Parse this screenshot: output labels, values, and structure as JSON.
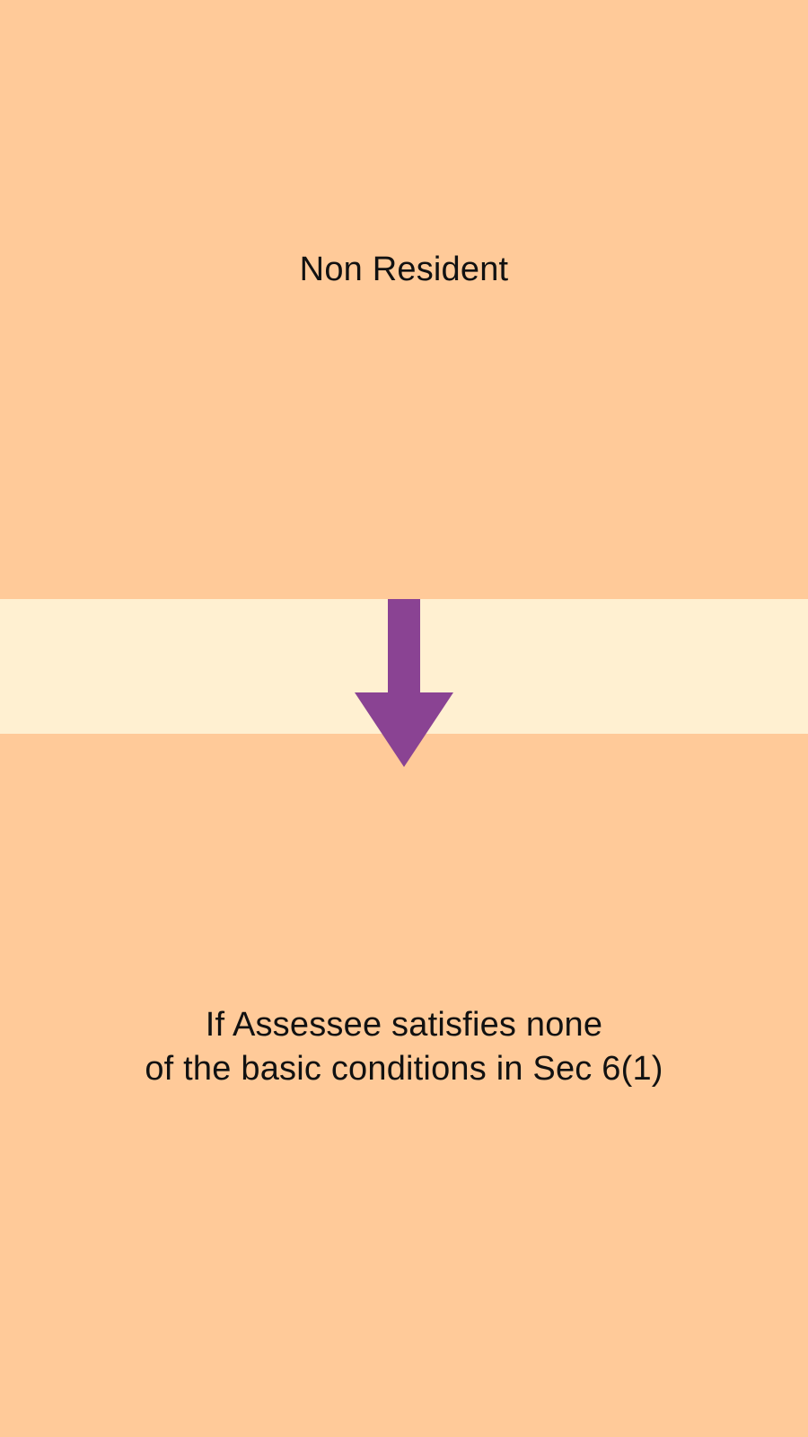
{
  "diagram": {
    "top_box": {
      "label": "Non Resident"
    },
    "bottom_box": {
      "line1": "If Assessee satisfies none",
      "line2": "of the basic conditions in Sec 6(1)"
    },
    "arrow": {
      "icon": "arrow-down-icon",
      "color": "#8A4393"
    },
    "colors": {
      "box_fill": "#FFCA99",
      "connector_band": "#FFF0D1",
      "text": "#111111"
    }
  }
}
